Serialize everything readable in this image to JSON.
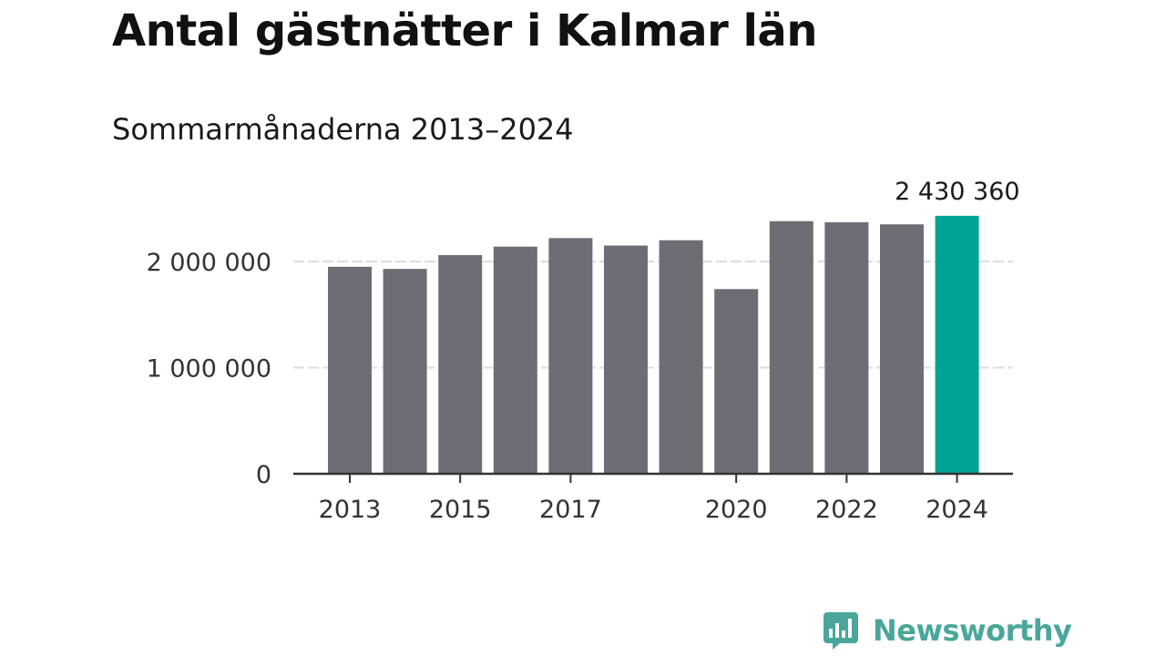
{
  "colors": {
    "bar_default": "#6e6d75",
    "bar_highlight": "#00a496",
    "gridline": "#dddddd",
    "axis": "#333333",
    "brand": "#4aa69a"
  },
  "brand": {
    "name": "Newsworthy",
    "logo_icon": "bar-chart-speech-bubble-icon"
  },
  "chart_data": {
    "type": "bar",
    "title": "Antal gästnätter i Kalmar län",
    "subtitle": "Sommarmånaderna 2013–2024",
    "xlabel": "",
    "ylabel": "",
    "categories": [
      "2013",
      "2014",
      "2015",
      "2016",
      "2017",
      "2018",
      "2019",
      "2020",
      "2021",
      "2022",
      "2023",
      "2024"
    ],
    "values": [
      1950000,
      1930000,
      2060000,
      2140000,
      2220000,
      2150000,
      2200000,
      1740000,
      2380000,
      2370000,
      2350000,
      2430360
    ],
    "highlight_index": 11,
    "highlight_label": "2 430 360",
    "ylim": [
      0,
      2600000
    ],
    "y_ticks": [
      0,
      1000000,
      2000000
    ],
    "y_tick_labels": [
      "0",
      "1 000 000",
      "2 000 000"
    ],
    "x_tick_labels": [
      {
        "index": 0,
        "label": "2013"
      },
      {
        "index": 2,
        "label": "2015"
      },
      {
        "index": 4,
        "label": "2017"
      },
      {
        "index": 7,
        "label": "2020"
      },
      {
        "index": 9,
        "label": "2022"
      },
      {
        "index": 11,
        "label": "2024"
      }
    ],
    "grid": true,
    "legend": "none"
  }
}
